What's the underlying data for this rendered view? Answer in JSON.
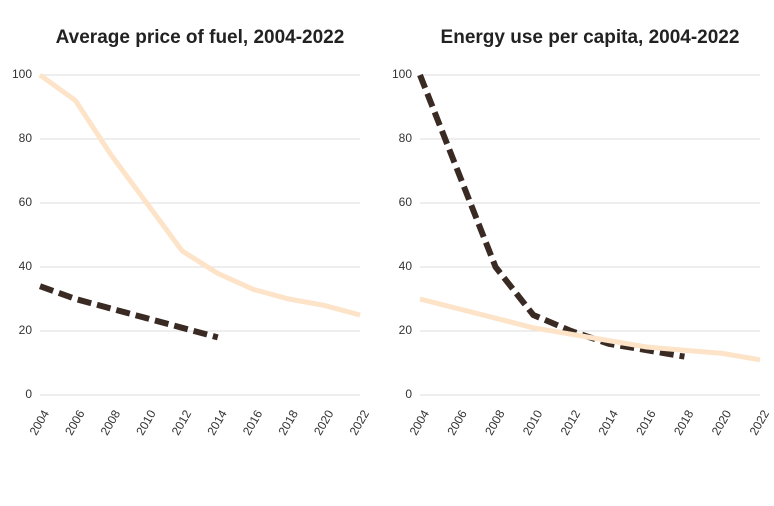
{
  "chart_data": [
    {
      "type": "line",
      "title": "Average price of fuel, 2004-2022",
      "categories": [
        "2004",
        "2006",
        "2008",
        "2010",
        "2012",
        "2014",
        "2016",
        "2018",
        "2020",
        "2022"
      ],
      "series": [
        {
          "color": "#fde3c8",
          "dash": false,
          "values": [
            100,
            92,
            75,
            60,
            45,
            38,
            33,
            30,
            28,
            25
          ]
        },
        {
          "color": "#3a2a24",
          "dash": true,
          "values": [
            34,
            30,
            27,
            24,
            21,
            18,
            null,
            null,
            null,
            null
          ]
        }
      ],
      "ylim": [
        0,
        100
      ],
      "yticks": [
        0,
        20,
        40,
        60,
        80,
        100
      ],
      "grid": true
    },
    {
      "type": "line",
      "title": "Energy use per capita, 2004-2022",
      "categories": [
        "2004",
        "2006",
        "2008",
        "2010",
        "2012",
        "2014",
        "2016",
        "2018",
        "2020",
        "2022"
      ],
      "series": [
        {
          "color": "#3a2a24",
          "dash": true,
          "values": [
            100,
            70,
            40,
            25,
            20,
            16,
            14,
            12,
            null,
            null
          ]
        },
        {
          "color": "#fde3c8",
          "dash": false,
          "values": [
            30,
            27,
            24,
            21,
            19,
            17,
            15,
            14,
            13,
            11
          ]
        }
      ],
      "ylim": [
        0,
        100
      ],
      "yticks": [
        0,
        20,
        40,
        60,
        80,
        100
      ],
      "grid": true
    }
  ]
}
